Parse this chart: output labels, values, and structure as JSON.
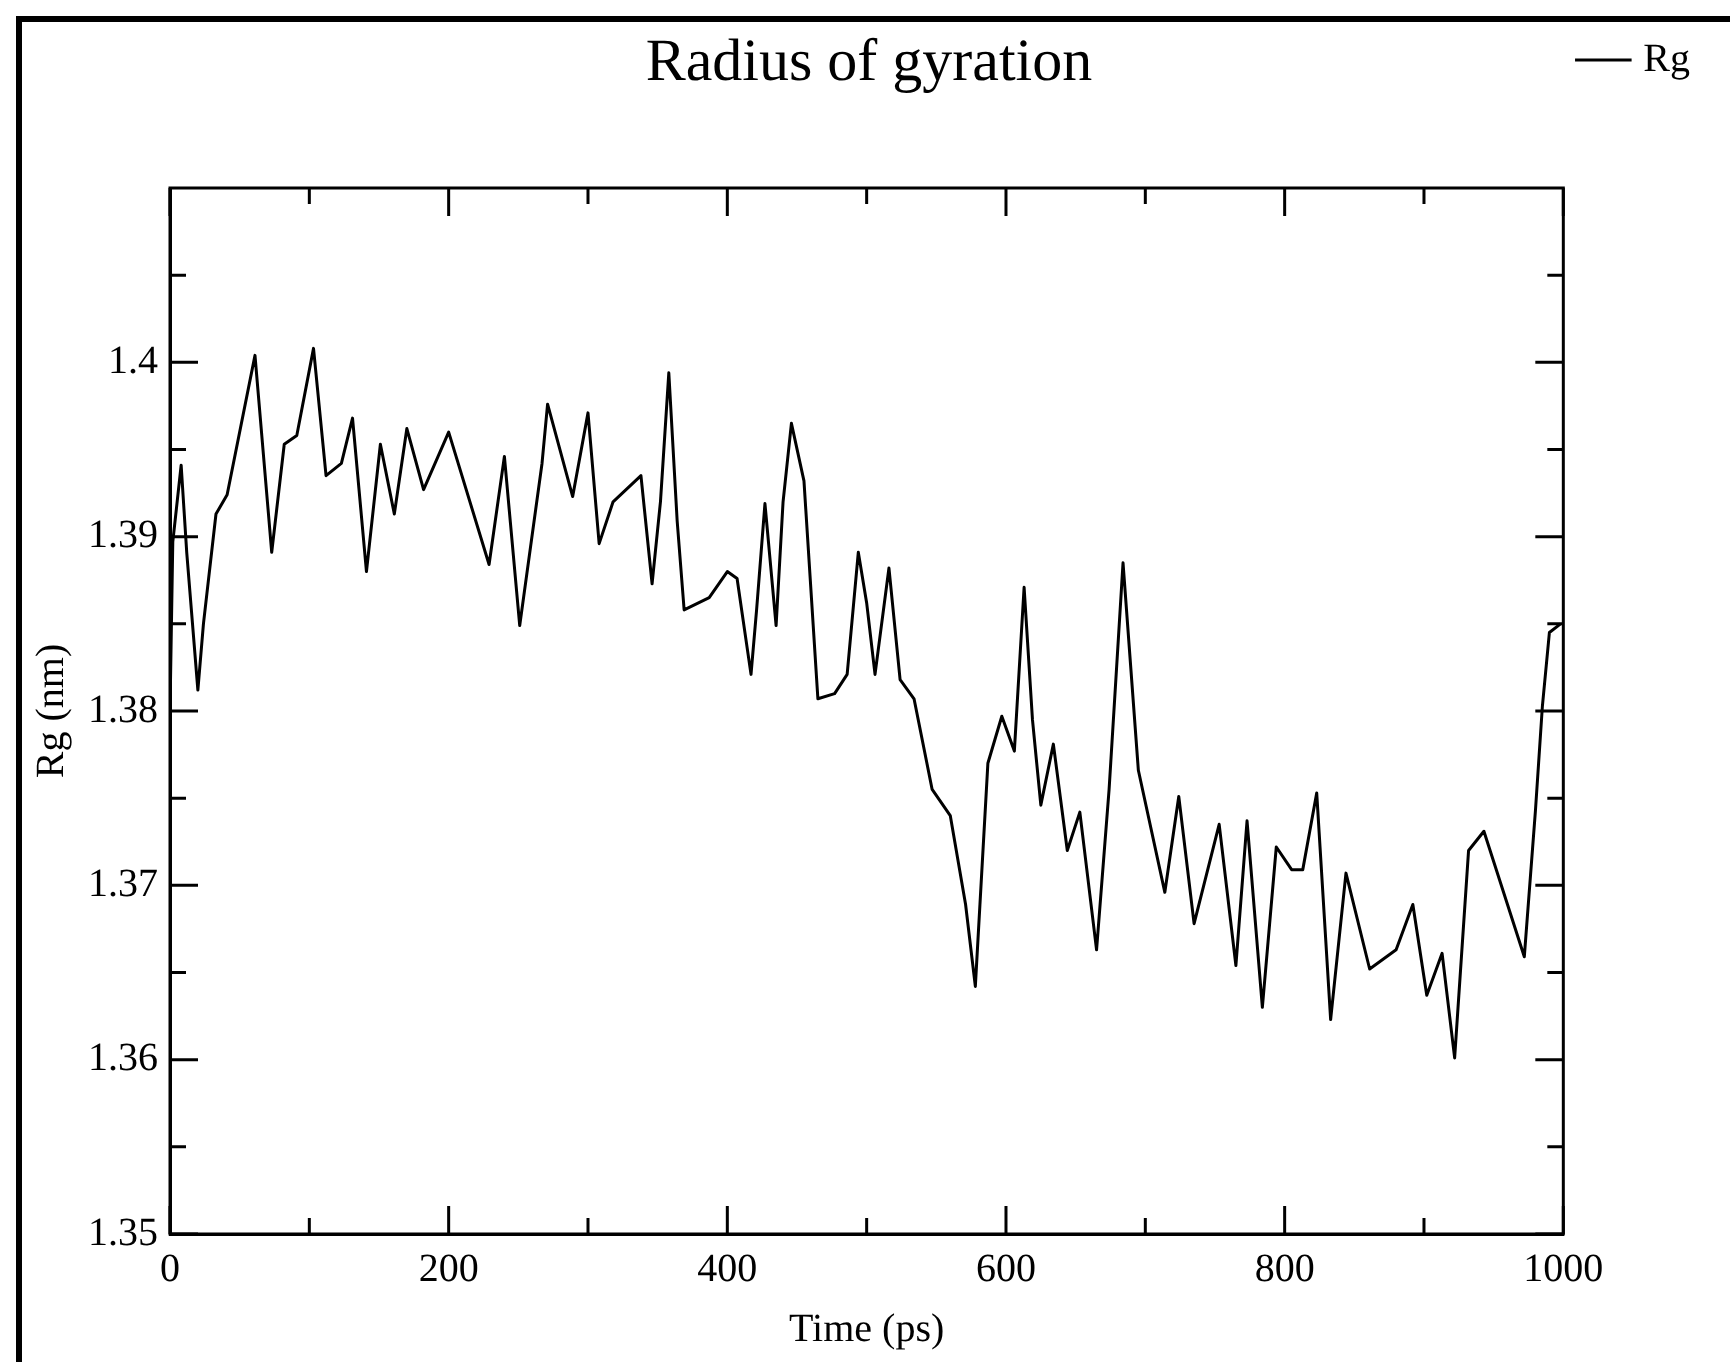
{
  "chart_data": {
    "type": "line",
    "title": "Radius of gyration",
    "xlabel": "Time (ps)",
    "ylabel": "Rg (nm)",
    "x": [
      0,
      2,
      8,
      12,
      20,
      24,
      33,
      41,
      61,
      73,
      82,
      91,
      103,
      112,
      123,
      131,
      141,
      151,
      161,
      170,
      182,
      200,
      229,
      240,
      251,
      267,
      271,
      289,
      300,
      308,
      318,
      338,
      346,
      352,
      358,
      364,
      369,
      387,
      400,
      407,
      417,
      421,
      427,
      435,
      440,
      446,
      455,
      465,
      477,
      486,
      494,
      500,
      506,
      516,
      524,
      534,
      547,
      560,
      571,
      578,
      587,
      597,
      606,
      613,
      619,
      625,
      634,
      644,
      653,
      665,
      674,
      684,
      695,
      714,
      724,
      735,
      753,
      765,
      773,
      784,
      794,
      805,
      813,
      823,
      833,
      844,
      861,
      880,
      892,
      902,
      913,
      922,
      932,
      943,
      972,
      980,
      985,
      990,
      998
    ],
    "series": [
      {
        "name": "Rg",
        "color": "#000000",
        "values": [
          1.38,
          1.3897,
          1.3941,
          1.3891,
          1.3812,
          1.385,
          1.3913,
          1.3924,
          1.4004,
          1.3891,
          1.3953,
          1.3958,
          1.4008,
          1.3935,
          1.3942,
          1.3968,
          1.388,
          1.3953,
          1.3913,
          1.3962,
          1.3927,
          1.396,
          1.3884,
          1.3946,
          1.3849,
          1.3942,
          1.3976,
          1.3923,
          1.3971,
          1.3896,
          1.392,
          1.3935,
          1.3873,
          1.392,
          1.3994,
          1.3909,
          1.3858,
          1.3865,
          1.388,
          1.3876,
          1.3821,
          1.3858,
          1.3919,
          1.3849,
          1.392,
          1.3965,
          1.3932,
          1.3807,
          1.381,
          1.3821,
          1.3891,
          1.3862,
          1.3821,
          1.3882,
          1.3818,
          1.3807,
          1.3755,
          1.374,
          1.3689,
          1.3642,
          1.377,
          1.3797,
          1.3777,
          1.3871,
          1.3795,
          1.3746,
          1.3781,
          1.372,
          1.3742,
          1.3663,
          1.3755,
          1.3885,
          1.3766,
          1.3696,
          1.3751,
          1.3678,
          1.3735,
          1.3654,
          1.3737,
          1.363,
          1.3722,
          1.3709,
          1.3709,
          1.3753,
          1.3623,
          1.3707,
          1.3652,
          1.3663,
          1.3689,
          1.3637,
          1.3661,
          1.3601,
          1.372,
          1.3731,
          1.3659,
          1.3743,
          1.3803,
          1.3845,
          1.385
        ]
      }
    ],
    "xlim": [
      0,
      1000
    ],
    "xticks": [
      0,
      {
        "value": 100,
        "label": null
      },
      200,
      {
        "value": 300,
        "label": null
      },
      400,
      {
        "value": 500,
        "label": null
      },
      600,
      {
        "value": 700,
        "label": null
      },
      800,
      {
        "value": 900,
        "label": null
      },
      1000
    ],
    "ylim": [
      1.35,
      1.41
    ],
    "yticks": [
      1.35,
      {
        "value": 1.355,
        "label": null
      },
      {
        "value": 1.36,
        "label": "1.36"
      },
      {
        "value": 1.365,
        "label": null
      },
      {
        "value": 1.37,
        "label": "1.37"
      },
      {
        "value": 1.375,
        "label": null
      },
      {
        "value": 1.38,
        "label": "1.38"
      },
      {
        "value": 1.385,
        "label": null
      },
      {
        "value": 1.39,
        "label": "1.39"
      },
      {
        "value": 1.395,
        "label": null
      },
      {
        "value": 1.4,
        "label": "1.4"
      },
      {
        "value": 1.405,
        "label": null
      }
    ],
    "grid": false,
    "legend": "top right",
    "marker": "none",
    "line_style": "solid"
  }
}
